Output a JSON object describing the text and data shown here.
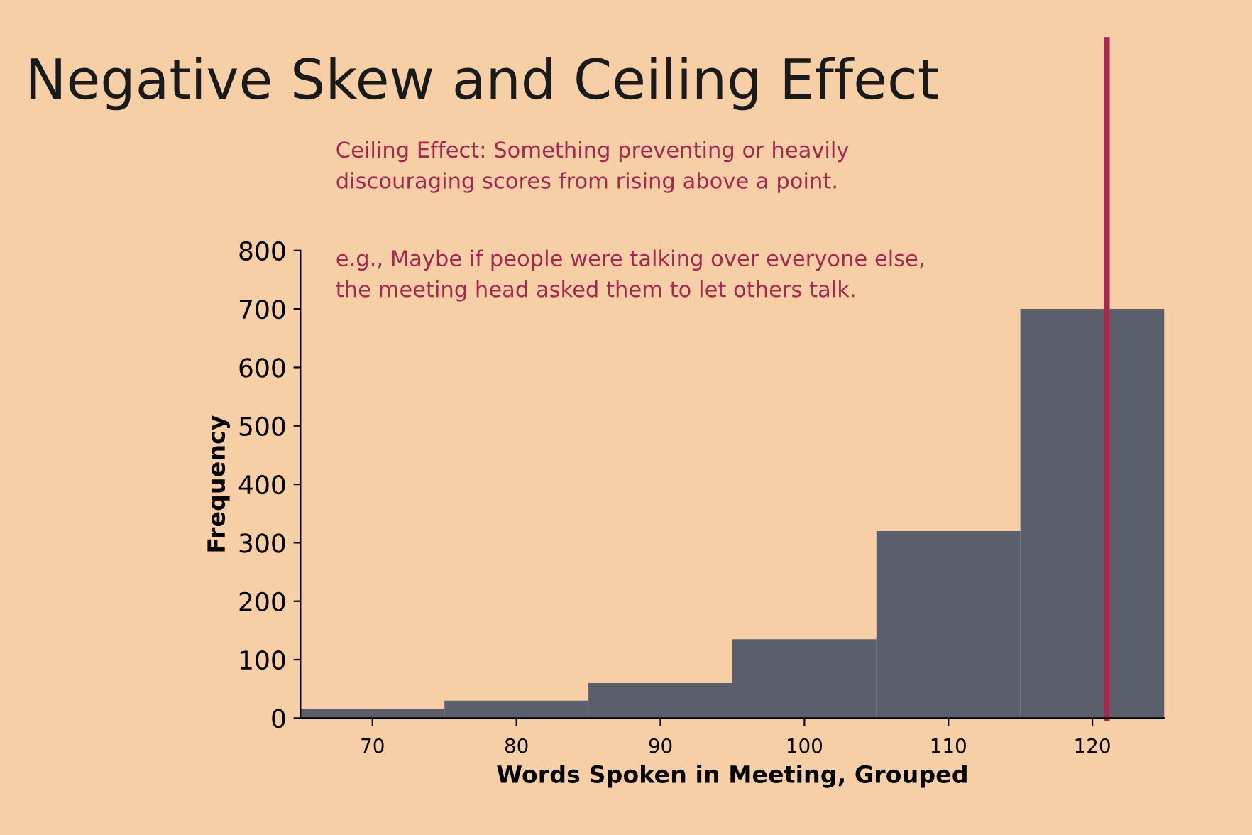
{
  "chart_data": {
    "type": "histogram",
    "title": "Negative Skew and Ceiling Effect",
    "xlabel": "Words Spoken in Meeting, Grouped",
    "ylabel": "Frequency",
    "bins": [
      65,
      75,
      85,
      95,
      105,
      115,
      125
    ],
    "values": [
      15,
      30,
      60,
      135,
      320,
      700
    ],
    "color": "#5b5f6c",
    "xlim": [
      65,
      125
    ],
    "xticks": [
      70,
      80,
      90,
      100,
      110,
      120
    ],
    "ylim": [
      0,
      800
    ],
    "yticks": [
      0,
      100,
      200,
      300,
      400,
      500,
      600,
      700,
      800
    ],
    "grid": false,
    "ref_lines": [
      {
        "axis": "x",
        "value": 121,
        "color": "#a3294f",
        "line_style": "solid"
      }
    ],
    "annotations": [
      "Ceiling Effect: Something preventing or heavily\ndiscouraging scores from rising above a point.",
      "e.g., Maybe if people were talking over everyone else,\nthe meeting head asked them to let others talk."
    ]
  }
}
